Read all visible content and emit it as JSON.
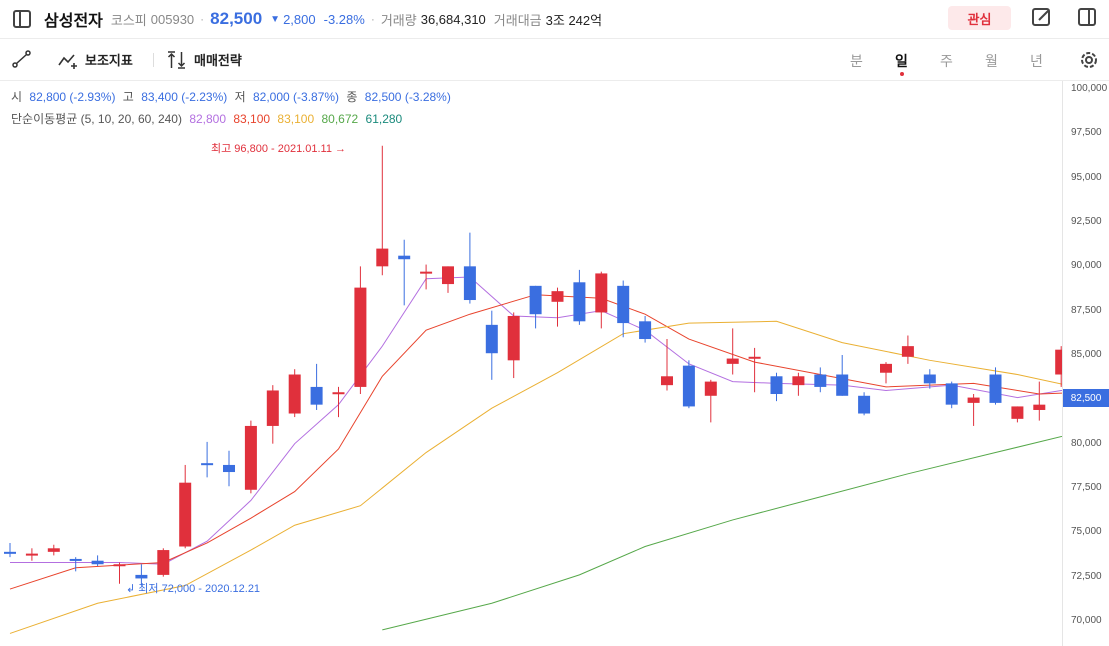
{
  "header": {
    "stock_name": "삼성전자",
    "market": "코스피",
    "code": "005930",
    "price": "82,500",
    "direction_icon": "triangle-down-icon",
    "change": "2,800",
    "rate": "-3.28%",
    "volume_label": "거래량",
    "volume": "36,684,310",
    "amount_label": "거래대금",
    "amount": "3조 242억",
    "fav_label": "관심"
  },
  "toolbar": {
    "indicator_label": "보조지표",
    "strategy_label": "매매전략",
    "periods": [
      "분",
      "일",
      "주",
      "월",
      "년"
    ],
    "active_period": "일"
  },
  "ohlc": {
    "open_label": "시",
    "open": "82,800 (-2.93%)",
    "high_label": "고",
    "high": "83,400 (-2.23%)",
    "low_label": "저",
    "low": "82,000 (-3.87%)",
    "close_label": "종",
    "close": "82,500 (-3.28%)"
  },
  "ma": {
    "label": "단순이동평균 (5, 10, 20, 60, 240)",
    "values": [
      "82,800",
      "83,100",
      "83,100",
      "80,672",
      "61,280"
    ],
    "colors": [
      "#b36fe0",
      "#e8432c",
      "#eab033",
      "#56a84a",
      "#1a8a7c"
    ]
  },
  "colors": {
    "up": "#e0303c",
    "down": "#3a6ee0"
  },
  "chart_data": {
    "type": "candlestick",
    "yticks": [
      "100,000",
      "97,500",
      "95,000",
      "92,500",
      "90,000",
      "87,500",
      "85,000",
      "82,500",
      "80,000",
      "77,500",
      "75,000",
      "72,500",
      "70,000"
    ],
    "ylim": [
      69500,
      100500
    ],
    "last_price_label": "82,500",
    "max_annotation": "최고 96,800 - 2021.01.11",
    "min_annotation": "최저 72,000 - 2020.12.21",
    "candles": [
      [
        73900,
        74400,
        73600,
        73800
      ],
      [
        73800,
        74100,
        73400,
        73800
      ],
      [
        73900,
        74300,
        73700,
        74100
      ],
      [
        73500,
        73600,
        72800,
        73400
      ],
      [
        73400,
        73700,
        73100,
        73200
      ],
      [
        73200,
        73300,
        72100,
        73200
      ],
      [
        72600,
        73200,
        72000,
        72400
      ],
      [
        72600,
        74100,
        72500,
        74000
      ],
      [
        74200,
        78800,
        74100,
        77800
      ],
      [
        78900,
        80100,
        78100,
        78800
      ],
      [
        78800,
        79600,
        77600,
        78400
      ],
      [
        77400,
        81300,
        77200,
        81000
      ],
      [
        81000,
        83300,
        80000,
        83000
      ],
      [
        81700,
        84200,
        81500,
        83900
      ],
      [
        83200,
        84500,
        81900,
        82200
      ],
      [
        82900,
        83200,
        81500,
        82900
      ],
      [
        83200,
        90000,
        82800,
        88800
      ],
      [
        90000,
        96800,
        89500,
        91000
      ],
      [
        90600,
        91500,
        87800,
        90400
      ],
      [
        89700,
        90100,
        88700,
        89700
      ],
      [
        89000,
        90000,
        88500,
        90000
      ],
      [
        90000,
        91900,
        87900,
        88100
      ],
      [
        86700,
        87500,
        83600,
        85100
      ],
      [
        84700,
        87400,
        83700,
        87200
      ],
      [
        88900,
        88900,
        86500,
        87300
      ],
      [
        88000,
        88800,
        86600,
        88600
      ],
      [
        89100,
        89800,
        86700,
        86900
      ],
      [
        87400,
        89700,
        86500,
        89600
      ],
      [
        88900,
        89200,
        86000,
        86800
      ],
      [
        86900,
        87200,
        85700,
        85900
      ],
      [
        83300,
        85900,
        83000,
        83800
      ],
      [
        84400,
        84700,
        82000,
        82100
      ],
      [
        82700,
        83600,
        81200,
        83500
      ],
      [
        84500,
        86500,
        83900,
        84800
      ],
      [
        84800,
        85400,
        82900,
        84900
      ],
      [
        83800,
        84000,
        82400,
        82800
      ],
      [
        83300,
        84000,
        82700,
        83800
      ],
      [
        83900,
        84300,
        82900,
        83200
      ],
      [
        83900,
        85000,
        82700,
        82700
      ],
      [
        82700,
        82900,
        81600,
        81700
      ],
      [
        84000,
        84600,
        83400,
        84500
      ],
      [
        84900,
        86100,
        84500,
        85500
      ],
      [
        83900,
        84200,
        83100,
        83400
      ],
      [
        83400,
        83500,
        82000,
        82200
      ],
      [
        82300,
        82800,
        81000,
        82600
      ],
      [
        83900,
        84300,
        82200,
        82300
      ],
      [
        81400,
        82100,
        81200,
        82100
      ],
      [
        81900,
        83500,
        81300,
        82200
      ],
      [
        83900,
        85500,
        83200,
        85300
      ],
      [
        82800,
        83400,
        82000,
        82500
      ]
    ],
    "series": [
      {
        "name": "MA5",
        "points": [
          [
            0,
            73300
          ],
          [
            5,
            73300
          ],
          [
            7,
            73200
          ],
          [
            9,
            74500
          ],
          [
            11,
            76800
          ],
          [
            13,
            80000
          ],
          [
            15,
            82200
          ],
          [
            17,
            85500
          ],
          [
            19,
            89300
          ],
          [
            21,
            89400
          ],
          [
            23,
            87200
          ],
          [
            25,
            87100
          ],
          [
            27,
            87500
          ],
          [
            29,
            86400
          ],
          [
            31,
            84500
          ],
          [
            33,
            83500
          ],
          [
            35,
            83400
          ],
          [
            38,
            83300
          ],
          [
            40,
            83000
          ],
          [
            43,
            83300
          ],
          [
            46,
            82600
          ],
          [
            48,
            83000
          ],
          [
            49,
            83000
          ]
        ]
      },
      {
        "name": "MA10",
        "points": [
          [
            0,
            71800
          ],
          [
            3,
            73000
          ],
          [
            7,
            73300
          ],
          [
            9,
            74400
          ],
          [
            11,
            75800
          ],
          [
            13,
            77300
          ],
          [
            15,
            79700
          ],
          [
            17,
            83800
          ],
          [
            19,
            86400
          ],
          [
            21,
            87300
          ],
          [
            24,
            88400
          ],
          [
            27,
            88200
          ],
          [
            29,
            87300
          ],
          [
            31,
            85900
          ],
          [
            34,
            84600
          ],
          [
            37,
            83900
          ],
          [
            40,
            83200
          ],
          [
            44,
            83400
          ],
          [
            47,
            82800
          ],
          [
            49,
            82900
          ]
        ]
      },
      {
        "name": "MA20",
        "points": [
          [
            0,
            69300
          ],
          [
            4,
            71000
          ],
          [
            8,
            72000
          ],
          [
            11,
            74000
          ],
          [
            13,
            75400
          ],
          [
            16,
            76500
          ],
          [
            19,
            79500
          ],
          [
            22,
            82000
          ],
          [
            25,
            84000
          ],
          [
            28,
            86200
          ],
          [
            31,
            86800
          ],
          [
            35,
            86900
          ],
          [
            38,
            85700
          ],
          [
            42,
            84700
          ],
          [
            46,
            83900
          ],
          [
            49,
            83100
          ]
        ]
      },
      {
        "name": "MA60",
        "points": [
          [
            17,
            69500
          ],
          [
            22,
            71000
          ],
          [
            26,
            72600
          ],
          [
            29,
            74200
          ],
          [
            33,
            75700
          ],
          [
            37,
            77000
          ],
          [
            41,
            78300
          ],
          [
            45,
            79500
          ],
          [
            49,
            80700
          ]
        ]
      }
    ]
  }
}
